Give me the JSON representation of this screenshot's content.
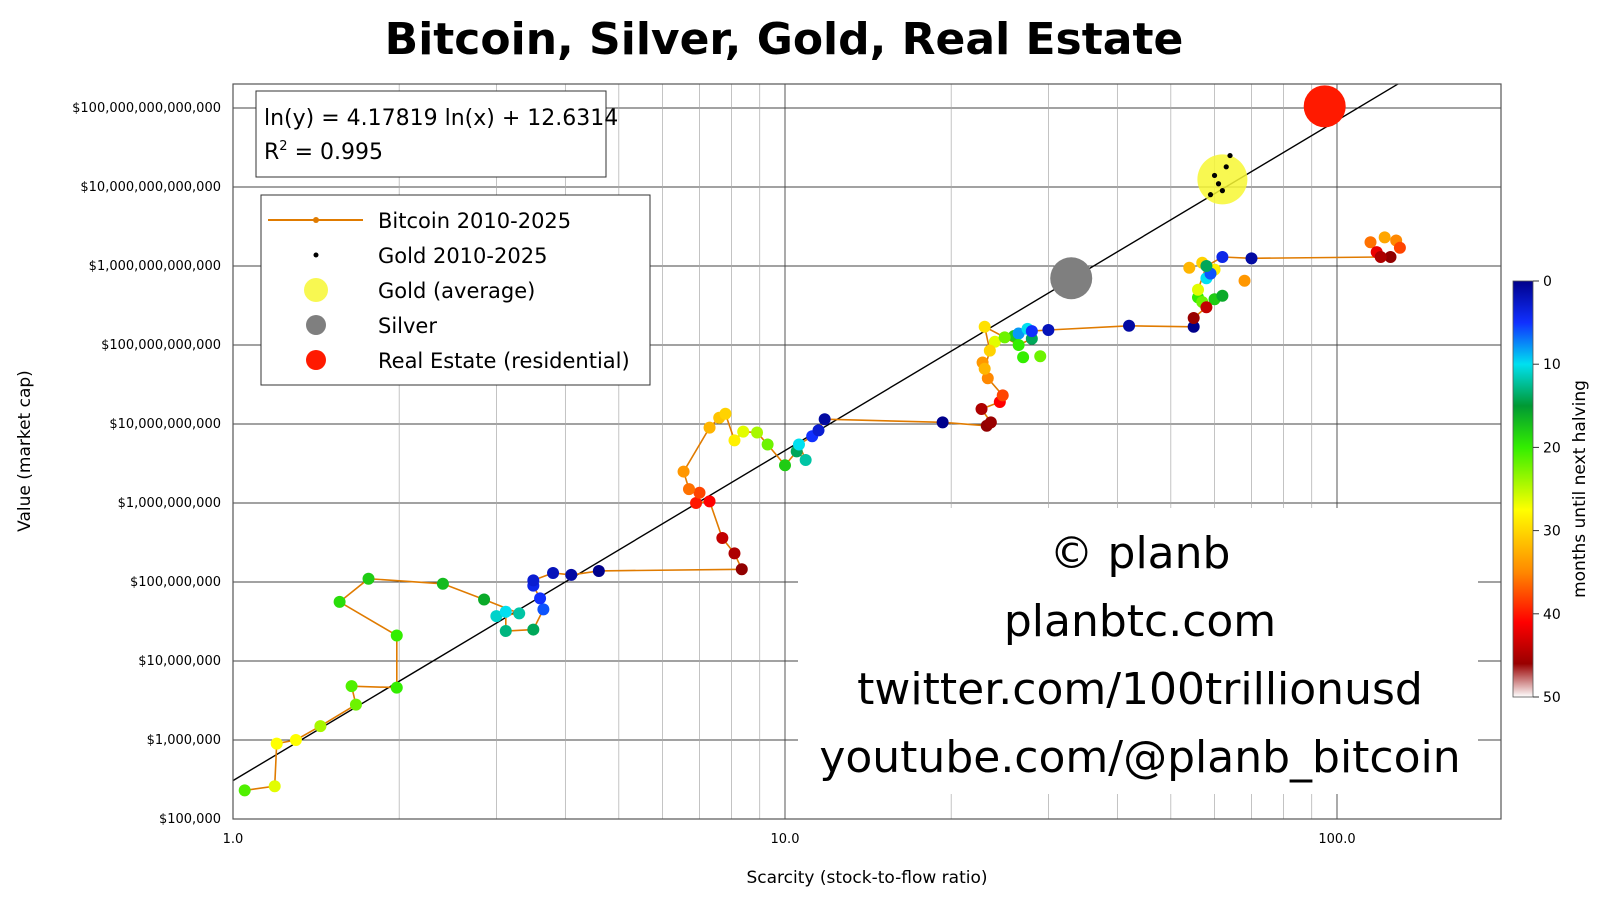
{
  "chart_data": {
    "type": "scatter",
    "title": "Bitcoin, Silver, Gold, Real Estate",
    "xlabel": "Scarcity (stock-to-flow ratio)",
    "ylabel": "Value (market cap)",
    "x_scale": "log",
    "y_scale": "log",
    "xlim": [
      1,
      300
    ],
    "ylim": [
      100000,
      200000000000000
    ],
    "x_ticks": [
      {
        "v": 1,
        "label": "1.0"
      },
      {
        "v": 10,
        "label": "10.0"
      },
      {
        "v": 100,
        "label": "100.0"
      }
    ],
    "y_ticks": [
      {
        "v": 100000,
        "label": "$100,000"
      },
      {
        "v": 1000000,
        "label": "$1,000,000"
      },
      {
        "v": 10000000,
        "label": "$10,000,000"
      },
      {
        "v": 100000000,
        "label": "$100,000,000"
      },
      {
        "v": 1000000000,
        "label": "$1,000,000,000"
      },
      {
        "v": 10000000000,
        "label": "$10,000,000,000"
      },
      {
        "v": 100000000000,
        "label": "$100,000,000,000"
      },
      {
        "v": 1000000000000,
        "label": "$1,000,000,000,000"
      },
      {
        "v": 10000000000000,
        "label": "$10,000,000,000,000"
      },
      {
        "v": 100000000000000,
        "label": "$100,000,000,000,000"
      }
    ],
    "grid": true,
    "regression": {
      "equation": "ln(y) = 4.17819 ln(x) + 12.6314",
      "r2_prefix": "R",
      "r2_sup": "2",
      "r2_value": " = 0.995",
      "a": 4.17819,
      "b": 12.6314
    },
    "legend": {
      "position": "top-left",
      "entries": [
        {
          "label": "Bitcoin 2010-2025",
          "marker": "line",
          "color": "#e07b00"
        },
        {
          "label": "Gold 2010-2025",
          "marker": "dot",
          "color": "#000000"
        },
        {
          "label": "Gold (average)",
          "marker": "circle",
          "color": "#f7f733"
        },
        {
          "label": "Silver",
          "marker": "circle",
          "color": "#7f7f7f"
        },
        {
          "label": "Real Estate (residential)",
          "marker": "circle",
          "color": "#ff1a00"
        }
      ]
    },
    "colorbar": {
      "label": "months until next halving",
      "ticks": [
        "0",
        "10",
        "20",
        "30",
        "40",
        "50"
      ],
      "min": 0,
      "max": 50
    },
    "watermark": [
      "© planb",
      "planbtc.com",
      "twitter.com/100trillionusd",
      "youtube.com/@planb_bitcoin"
    ],
    "series": [
      {
        "name": "Bitcoin 2010-2025",
        "color": "#e07b00",
        "points": [
          {
            "x": 1.05,
            "y": 230000,
            "m": 21
          },
          {
            "x": 1.19,
            "y": 260000,
            "m": 26
          },
          {
            "x": 1.2,
            "y": 900000,
            "m": 27
          },
          {
            "x": 1.3,
            "y": 1000000,
            "m": 27
          },
          {
            "x": 1.44,
            "y": 1500000,
            "m": 24
          },
          {
            "x": 1.67,
            "y": 2800000,
            "m": 22
          },
          {
            "x": 1.64,
            "y": 4800000,
            "m": 21
          },
          {
            "x": 1.98,
            "y": 4600000,
            "m": 20
          },
          {
            "x": 1.98,
            "y": 21000000,
            "m": 20
          },
          {
            "x": 1.56,
            "y": 56000000,
            "m": 19
          },
          {
            "x": 1.76,
            "y": 110000000,
            "m": 18
          },
          {
            "x": 2.4,
            "y": 95000000,
            "m": 17
          },
          {
            "x": 2.85,
            "y": 60000000,
            "m": 16
          },
          {
            "x": 3.3,
            "y": 40000000,
            "m": 12
          },
          {
            "x": 3.0,
            "y": 37000000,
            "m": 11
          },
          {
            "x": 3.12,
            "y": 42000000,
            "m": 10
          },
          {
            "x": 3.12,
            "y": 24000000,
            "m": 13
          },
          {
            "x": 3.5,
            "y": 25000000,
            "m": 14
          },
          {
            "x": 3.65,
            "y": 45000000,
            "m": 6
          },
          {
            "x": 3.6,
            "y": 62000000,
            "m": 5
          },
          {
            "x": 3.5,
            "y": 90000000,
            "m": 4
          },
          {
            "x": 3.5,
            "y": 105000000,
            "m": 3
          },
          {
            "x": 3.8,
            "y": 130000000,
            "m": 2
          },
          {
            "x": 4.1,
            "y": 123000000,
            "m": 1
          },
          {
            "x": 4.6,
            "y": 138000000,
            "m": 0
          },
          {
            "x": 8.35,
            "y": 145000000,
            "m": 47
          },
          {
            "x": 8.1,
            "y": 230000000,
            "m": 45
          },
          {
            "x": 7.7,
            "y": 360000000,
            "m": 44
          },
          {
            "x": 7.3,
            "y": 1050000000,
            "m": 41
          },
          {
            "x": 6.9,
            "y": 1000000000,
            "m": 40
          },
          {
            "x": 7.0,
            "y": 1350000000,
            "m": 38
          },
          {
            "x": 6.7,
            "y": 1500000000,
            "m": 36
          },
          {
            "x": 6.55,
            "y": 2500000000,
            "m": 34
          },
          {
            "x": 7.3,
            "y": 9000000000,
            "m": 32
          },
          {
            "x": 7.6,
            "y": 12000000000,
            "m": 31
          },
          {
            "x": 7.8,
            "y": 13500000000,
            "m": 30
          },
          {
            "x": 8.1,
            "y": 6200000000,
            "m": 28
          },
          {
            "x": 8.4,
            "y": 8000000000,
            "m": 26
          },
          {
            "x": 8.9,
            "y": 7800000000,
            "m": 24
          },
          {
            "x": 9.3,
            "y": 5500000000,
            "m": 22
          },
          {
            "x": 10.0,
            "y": 3000000000,
            "m": 18
          },
          {
            "x": 10.5,
            "y": 4500000000,
            "m": 14
          },
          {
            "x": 10.9,
            "y": 3500000000,
            "m": 12
          },
          {
            "x": 10.6,
            "y": 5500000000,
            "m": 10
          },
          {
            "x": 11.2,
            "y": 7000000000,
            "m": 5
          },
          {
            "x": 11.5,
            "y": 8300000000,
            "m": 3
          },
          {
            "x": 11.8,
            "y": 11500000000,
            "m": 1
          },
          {
            "x": 19.3,
            "y": 10500000000,
            "m": 0
          },
          {
            "x": 23.2,
            "y": 9500000000,
            "m": 47
          },
          {
            "x": 23.6,
            "y": 10500000000,
            "m": 46
          },
          {
            "x": 22.7,
            "y": 15500000000,
            "m": 45
          },
          {
            "x": 24.5,
            "y": 19000000000,
            "m": 41
          },
          {
            "x": 24.8,
            "y": 23000000000,
            "m": 38
          },
          {
            "x": 23.3,
            "y": 38000000000,
            "m": 35
          },
          {
            "x": 23.0,
            "y": 50000000000,
            "m": 32
          },
          {
            "x": 23.5,
            "y": 85000000000,
            "m": 30
          },
          {
            "x": 23.0,
            "y": 170000000000,
            "m": 29
          },
          {
            "x": 25.0,
            "y": 125000000000,
            "m": 22
          },
          {
            "x": 26.5,
            "y": 100000000000,
            "m": 20
          },
          {
            "x": 28.0,
            "y": 120000000000,
            "m": 14
          },
          {
            "x": 27.5,
            "y": 160000000000,
            "m": 10
          },
          {
            "x": 28.0,
            "y": 150000000000,
            "m": 5
          },
          {
            "x": 30.0,
            "y": 155000000000,
            "m": 2
          },
          {
            "x": 42.0,
            "y": 175000000000,
            "m": 1
          },
          {
            "x": 55.0,
            "y": 170000000000,
            "m": 0
          },
          {
            "x": 55.0,
            "y": 220000000000,
            "m": 46
          },
          {
            "x": 58.0,
            "y": 300000000000,
            "m": 44
          },
          {
            "x": 56.0,
            "y": 500000000000,
            "m": 26
          },
          {
            "x": 58.0,
            "y": 1000000000000,
            "m": 14
          },
          {
            "x": 62.0,
            "y": 1300000000000,
            "m": 4
          },
          {
            "x": 70.0,
            "y": 1250000000000,
            "m": 1
          },
          {
            "x": 120.0,
            "y": 1300000000000,
            "m": 45
          }
        ]
      }
    ],
    "bitcoin_clusters": [
      {
        "x": 22.8,
        "y": 60000000000,
        "m": 34
      },
      {
        "x": 24.0,
        "y": 110000000000,
        "m": 26
      },
      {
        "x": 26.0,
        "y": 130000000000,
        "m": 18
      },
      {
        "x": 27.0,
        "y": 70000000000,
        "m": 20
      },
      {
        "x": 29.0,
        "y": 72000000000,
        "m": 22
      },
      {
        "x": 26.5,
        "y": 140000000000,
        "m": 8
      },
      {
        "x": 54.0,
        "y": 950000000000,
        "m": 32
      },
      {
        "x": 57.0,
        "y": 1100000000000,
        "m": 30
      },
      {
        "x": 60.0,
        "y": 900000000000,
        "m": 28
      },
      {
        "x": 58.0,
        "y": 700000000000,
        "m": 10
      },
      {
        "x": 59.0,
        "y": 800000000000,
        "m": 6
      },
      {
        "x": 56.0,
        "y": 400000000000,
        "m": 20
      },
      {
        "x": 60.0,
        "y": 380000000000,
        "m": 18
      },
      {
        "x": 62.0,
        "y": 420000000000,
        "m": 16
      },
      {
        "x": 57.0,
        "y": 350000000000,
        "m": 22
      },
      {
        "x": 68.0,
        "y": 650000000000,
        "m": 34
      },
      {
        "x": 115.0,
        "y": 2000000000000,
        "m": 36
      },
      {
        "x": 122.0,
        "y": 2300000000000,
        "m": 33
      },
      {
        "x": 128.0,
        "y": 2100000000000,
        "m": 35
      },
      {
        "x": 130.0,
        "y": 1700000000000,
        "m": 38
      },
      {
        "x": 118.0,
        "y": 1500000000000,
        "m": 42
      },
      {
        "x": 125.0,
        "y": 1300000000000,
        "m": 47
      }
    ],
    "gold_points": [
      {
        "x": 63.0,
        "y": 18000000000000
      },
      {
        "x": 61.0,
        "y": 11000000000000
      },
      {
        "x": 60.0,
        "y": 14000000000000
      },
      {
        "x": 62.0,
        "y": 9000000000000
      },
      {
        "x": 64.0,
        "y": 25000000000000
      },
      {
        "x": 59.0,
        "y": 8000000000000
      }
    ],
    "reference_points": [
      {
        "name": "Gold (average)",
        "x": 62,
        "y": 12500000000000,
        "color": "#f7f733",
        "r": 25
      },
      {
        "name": "Silver",
        "x": 33,
        "y": 700000000000,
        "color": "#7f7f7f",
        "r": 21
      },
      {
        "name": "Real Estate (residential)",
        "x": 95,
        "y": 105000000000000,
        "color": "#ff1a00",
        "r": 21
      }
    ]
  }
}
